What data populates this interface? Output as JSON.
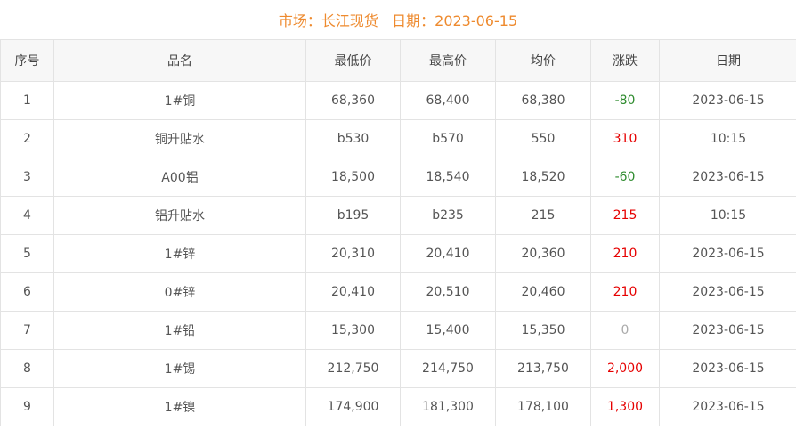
{
  "title": "市场：长江现货   日期：2023-06-15",
  "colors": {
    "title": "#ee8a2e",
    "up": "#e60000",
    "down": "#2e8b2e",
    "flat": "#aaaaaa"
  },
  "headers": [
    "序号",
    "品名",
    "最低价",
    "最高价",
    "均价",
    "涨跌",
    "日期"
  ],
  "rows": [
    [
      "1",
      "1#铜",
      "68,360",
      "68,400",
      "68,380",
      "-80",
      "2023-06-15"
    ],
    [
      "2",
      "铜升贴水",
      "b530",
      "b570",
      "550",
      "310",
      "10:15"
    ],
    [
      "3",
      "A00铝",
      "18,500",
      "18,540",
      "18,520",
      "-60",
      "2023-06-15"
    ],
    [
      "4",
      "铝升贴水",
      "b195",
      "b235",
      "215",
      "215",
      "10:15"
    ],
    [
      "5",
      "1#锌",
      "20,310",
      "20,410",
      "20,360",
      "210",
      "2023-06-15"
    ],
    [
      "6",
      "0#锌",
      "20,410",
      "20,510",
      "20,460",
      "210",
      "2023-06-15"
    ],
    [
      "7",
      "1#铅",
      "15,300",
      "15,400",
      "15,350",
      "0",
      "2023-06-15"
    ],
    [
      "8",
      "1#锡",
      "212,750",
      "214,750",
      "213,750",
      "2,000",
      "2023-06-15"
    ],
    [
      "9",
      "1#镍",
      "174,900",
      "181,300",
      "178,100",
      "1,300",
      "2023-06-15"
    ]
  ]
}
